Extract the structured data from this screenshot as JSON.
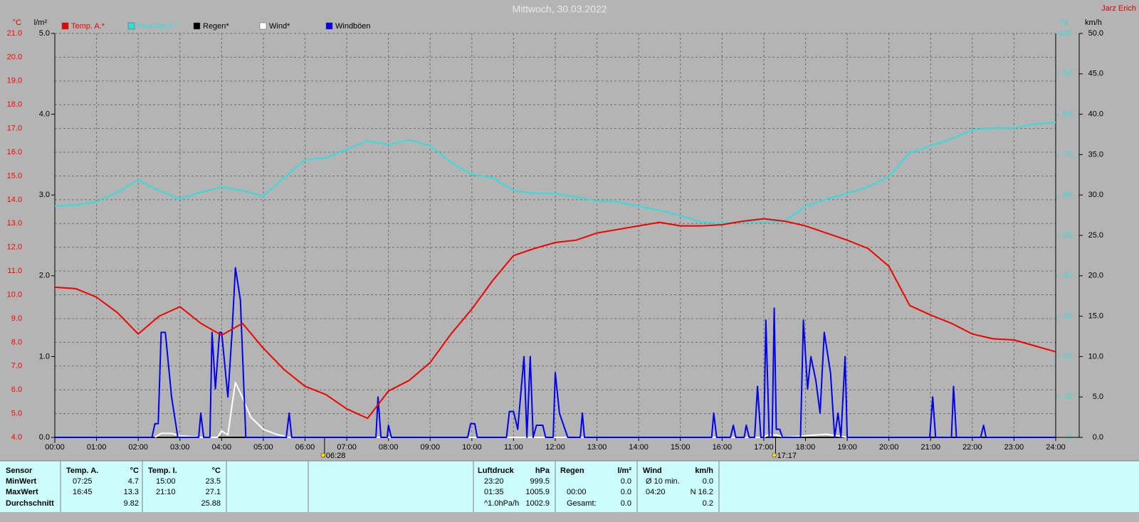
{
  "chart_data": {
    "type": "line",
    "title": "Mittwoch, 30.03.2022",
    "author": "Jarz Erich",
    "ylabel": "°C",
    "y2label": "l/m²",
    "y3label": "%",
    "y4label": "km/h",
    "xlim": [
      0,
      24
    ],
    "xticks": [
      {
        "value": 0,
        "label": "00:00"
      },
      {
        "value": 1,
        "label": "01:00"
      },
      {
        "value": 2,
        "label": "02:00"
      },
      {
        "value": 3,
        "label": "03:00"
      },
      {
        "value": 4,
        "label": "04:00"
      },
      {
        "value": 5,
        "label": "05:00"
      },
      {
        "value": 6,
        "label": "06:00"
      },
      {
        "value": 7,
        "label": "07:00"
      },
      {
        "value": 8,
        "label": "08:00"
      },
      {
        "value": 9,
        "label": "09:00"
      },
      {
        "value": 10,
        "label": "10:00"
      },
      {
        "value": 11,
        "label": "11:00"
      },
      {
        "value": 12,
        "label": "12:00"
      },
      {
        "value": 13,
        "label": "13:00"
      },
      {
        "value": 14,
        "label": "14:00"
      },
      {
        "value": 15,
        "label": "15:00"
      },
      {
        "value": 16,
        "label": "16:00"
      },
      {
        "value": 17,
        "label": "17:00"
      },
      {
        "value": 18,
        "label": "18:00"
      },
      {
        "value": 19,
        "label": "19:00"
      },
      {
        "value": 20,
        "label": "20:00"
      },
      {
        "value": 21,
        "label": "21:00"
      },
      {
        "value": 22,
        "label": "22:00"
      },
      {
        "value": 23,
        "label": "23:00"
      },
      {
        "value": 24,
        "label": "24:00"
      }
    ],
    "ylim": [
      4,
      21
    ],
    "yticks": [
      {
        "value": 4,
        "label": "4.0"
      },
      {
        "value": 5,
        "label": "5.0"
      },
      {
        "value": 6,
        "label": "6.0"
      },
      {
        "value": 7,
        "label": "7.0"
      },
      {
        "value": 8,
        "label": "8.0"
      },
      {
        "value": 9,
        "label": "9.0"
      },
      {
        "value": 10,
        "label": "10.0"
      },
      {
        "value": 11,
        "label": "11.0"
      },
      {
        "value": 12,
        "label": "12.0"
      },
      {
        "value": 13,
        "label": "13.0"
      },
      {
        "value": 14,
        "label": "14.0"
      },
      {
        "value": 15,
        "label": "15.0"
      },
      {
        "value": 16,
        "label": "16.0"
      },
      {
        "value": 17,
        "label": "17.0"
      },
      {
        "value": 18,
        "label": "18.0"
      },
      {
        "value": 19,
        "label": "19.0"
      },
      {
        "value": 20,
        "label": "20.0"
      },
      {
        "value": 21,
        "label": "21.0"
      }
    ],
    "y2lim": [
      0,
      5
    ],
    "y2ticks": [
      {
        "value": 0,
        "label": "0.0"
      },
      {
        "value": 1,
        "label": "1.0"
      },
      {
        "value": 2,
        "label": "2.0"
      },
      {
        "value": 3,
        "label": "3.0"
      },
      {
        "value": 4,
        "label": "4.0"
      },
      {
        "value": 5,
        "label": "5.0"
      }
    ],
    "y3lim": [
      0,
      100
    ],
    "y3ticks": [
      0,
      10,
      20,
      30,
      40,
      50,
      60,
      70,
      80,
      90,
      100
    ],
    "y4lim": [
      0,
      50
    ],
    "y4ticks": [
      {
        "value": 0,
        "label": "0.0"
      },
      {
        "value": 5,
        "label": "5.0"
      },
      {
        "value": 10,
        "label": "10.0"
      },
      {
        "value": 15,
        "label": "15.0"
      },
      {
        "value": 20,
        "label": "20.0"
      },
      {
        "value": 25,
        "label": "25.0"
      },
      {
        "value": 30,
        "label": "30.0"
      },
      {
        "value": 35,
        "label": "35.0"
      },
      {
        "value": 40,
        "label": "40.0"
      },
      {
        "value": 45,
        "label": "45.0"
      },
      {
        "value": 50,
        "label": "50.0"
      }
    ],
    "axis_colors": {
      "y": "#ff0000",
      "y2": "#000000",
      "y3": "#33dddd",
      "y4": "#000000"
    },
    "grid": true,
    "x": [
      0,
      0.5,
      1,
      1.5,
      2,
      2.5,
      3,
      3.5,
      4,
      4.5,
      5,
      5.5,
      6,
      6.5,
      7,
      7.5,
      8,
      8.5,
      9,
      9.5,
      10,
      10.5,
      11,
      11.5,
      12,
      12.5,
      13,
      13.5,
      14,
      14.5,
      15,
      15.5,
      16,
      16.5,
      17,
      17.5,
      18,
      18.5,
      19,
      19.5,
      20,
      20.5,
      21,
      21.5,
      22,
      22.5,
      23,
      23.5,
      24
    ],
    "series": [
      {
        "name": "Temp. A.*",
        "color": "#ee0000",
        "axis": "y",
        "values": [
          10.32,
          10.26,
          9.9,
          9.25,
          8.35,
          9.1,
          9.5,
          8.8,
          8.3,
          8.8,
          7.75,
          6.85,
          6.15,
          5.8,
          5.2,
          4.8,
          5.95,
          6.4,
          7.15,
          8.35,
          9.4,
          10.6,
          11.65,
          11.95,
          12.2,
          12.3,
          12.6,
          12.75,
          12.9,
          13.05,
          12.9,
          12.9,
          12.95,
          13.1,
          13.2,
          13.1,
          12.9,
          12.6,
          12.3,
          11.95,
          11.2,
          9.55,
          9.15,
          8.8,
          8.35,
          8.15,
          8.1,
          7.85,
          7.6
        ]
      },
      {
        "name": "Feuchte A.*",
        "color": "#33dddd",
        "axis": "y3",
        "values": [
          57.2,
          57.6,
          58.3,
          60.7,
          63.7,
          61.1,
          59,
          60.7,
          62,
          61.1,
          59.7,
          64.3,
          68.7,
          69.2,
          71.3,
          73.4,
          72.5,
          73.6,
          72.2,
          68.1,
          65.1,
          64.3,
          61.1,
          60.4,
          60.4,
          59.5,
          58.5,
          58.3,
          57.2,
          56.2,
          54.9,
          53.3,
          53,
          53.3,
          53.3,
          53.5,
          57.2,
          59,
          60.4,
          62,
          64.6,
          70.4,
          72.2,
          73.9,
          76.1,
          76.6,
          76.6,
          77.6,
          78
        ]
      },
      {
        "name": "Regen*",
        "color": "#000000",
        "axis": "y2",
        "x": [
          0,
          24
        ],
        "values": [
          0,
          0
        ]
      },
      {
        "name": "Wind*",
        "color": "#ffffff",
        "axis": "y4",
        "x": [
          2.4,
          2.55,
          2.8,
          3.0,
          3.5,
          3.9,
          4.0,
          4.15,
          4.25,
          4.33,
          4.45,
          4.7,
          5.0,
          5.3,
          5.6,
          17.0,
          17.1,
          17.3,
          17.5,
          18.0,
          18.5,
          19.0,
          19.5
        ],
        "values": [
          0,
          0.5,
          0.5,
          0.2,
          0,
          0,
          0.8,
          0.3,
          4,
          6.8,
          5.5,
          2.5,
          1,
          0.4,
          0,
          0,
          0.3,
          0.3,
          0,
          0.2,
          0.4,
          0,
          0
        ]
      },
      {
        "name": "Windböen",
        "color": "#0000ee",
        "axis": "y4",
        "x": [
          0,
          2.33,
          2.4,
          2.48,
          2.55,
          2.65,
          2.8,
          2.95,
          3.45,
          3.5,
          3.57,
          3.72,
          3.77,
          3.85,
          3.95,
          4.0,
          4.15,
          4.25,
          4.33,
          4.45,
          4.58,
          5.55,
          5.62,
          5.68,
          7.7,
          7.75,
          7.82,
          7.97,
          8.0,
          8.07,
          9.9,
          9.97,
          10.07,
          10.13,
          10.83,
          10.9,
          11.0,
          11.1,
          11.25,
          11.32,
          11.4,
          11.47,
          11.55,
          11.7,
          11.77,
          11.95,
          12.0,
          12.1,
          12.3,
          12.6,
          12.65,
          12.7,
          15.75,
          15.8,
          15.87,
          16.2,
          16.27,
          16.33,
          16.53,
          16.58,
          16.65,
          16.78,
          16.85,
          16.93,
          17.0,
          17.05,
          17.13,
          17.2,
          17.25,
          17.3,
          17.38,
          17.45,
          17.88,
          17.95,
          18.05,
          18.13,
          18.25,
          18.35,
          18.45,
          18.6,
          18.7,
          18.78,
          18.85,
          18.95,
          19.0,
          20.98,
          21.05,
          21.12,
          21.5,
          21.55,
          21.62,
          22.2,
          22.27,
          22.33,
          24
        ],
        "values": [
          0,
          0,
          1.7,
          1.7,
          13,
          13,
          5,
          0,
          0,
          3,
          0,
          0,
          13,
          6,
          13,
          13,
          5,
          13,
          21,
          17,
          0,
          0,
          3,
          0,
          0,
          5,
          0,
          0,
          1.5,
          0,
          0,
          1.7,
          1.7,
          0,
          0,
          3.2,
          3.2,
          1,
          10,
          0,
          10,
          0,
          1.5,
          1.5,
          0,
          0,
          8,
          3,
          0,
          0,
          3,
          0,
          0,
          3,
          0,
          0,
          1.5,
          0,
          0,
          1.5,
          0,
          0,
          6.3,
          0,
          0,
          14.5,
          0,
          0,
          16,
          1,
          1,
          0,
          0,
          14.5,
          6,
          10,
          7,
          3,
          13,
          8,
          0,
          3,
          0,
          10,
          0,
          0,
          5,
          0,
          0,
          6.3,
          0,
          0,
          1.5,
          0,
          0
        ]
      }
    ],
    "annotations": [
      {
        "value": 6.4667,
        "label": "06:28"
      },
      {
        "value": 17.2833,
        "label": "17:17"
      }
    ]
  },
  "stats": {
    "row_labels": [
      "Sensor",
      "MinWert",
      "MaxWert",
      "Durchschnitt"
    ],
    "columns": [
      {
        "header": "Temp. A.",
        "unit": "°C",
        "rows": [
          [
            "07:25",
            "4.7"
          ],
          [
            "16:45",
            "13.3"
          ],
          [
            null,
            "9.82"
          ]
        ]
      },
      {
        "header": "Temp. I.",
        "unit": "°C",
        "rows": [
          [
            "15:00",
            "23.5"
          ],
          [
            "21:10",
            "27.1"
          ],
          [
            null,
            "25.88"
          ]
        ]
      },
      {
        "header": "Luftdruck",
        "unit": "hPa",
        "rows": [
          [
            "23:20",
            "999.5"
          ],
          [
            "01:35",
            "1005.9"
          ],
          [
            "^1.0hPa/h",
            "1002.9"
          ]
        ]
      },
      {
        "header": "Regen",
        "unit": "l/m²",
        "rows": [
          [
            null,
            "0.0"
          ],
          [
            "00:00",
            "0.0"
          ],
          [
            "Gesamt:",
            "0.0"
          ]
        ]
      },
      {
        "header": "Wind",
        "unit": "km/h",
        "rows": [
          [
            "Ø 10 min.",
            "0.0"
          ],
          [
            "04:20",
            "N 16.2"
          ],
          [
            null,
            "0.2"
          ]
        ]
      }
    ]
  }
}
